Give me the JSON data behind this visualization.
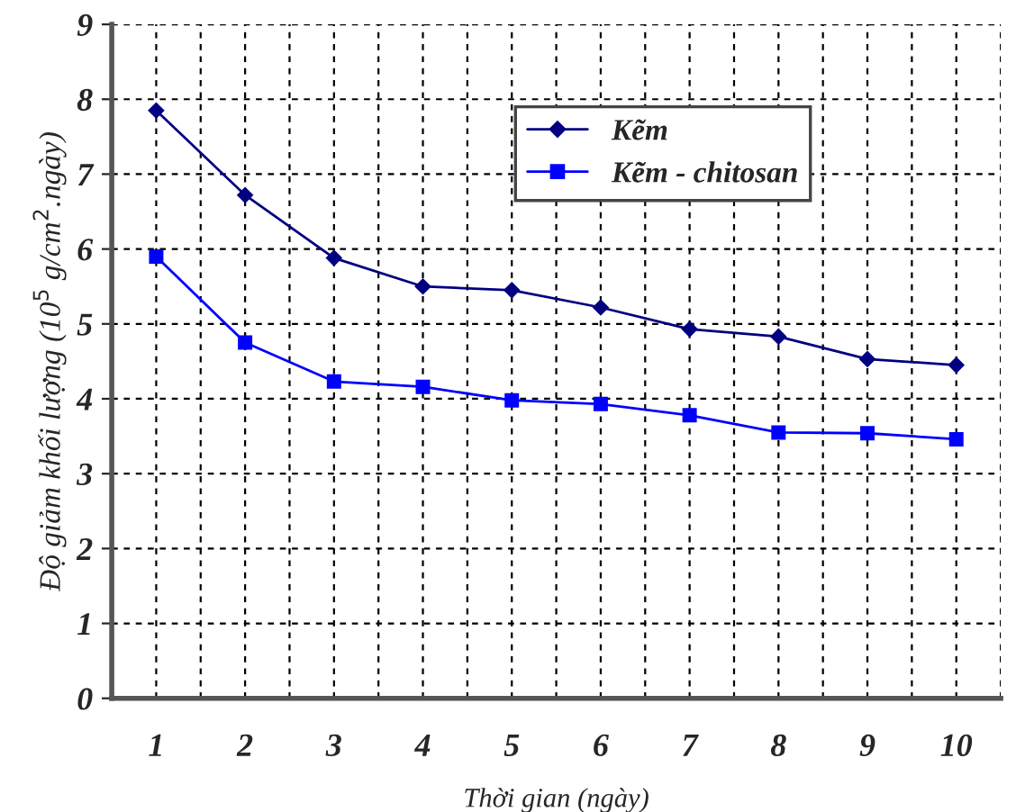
{
  "chart_data": {
    "type": "line",
    "xlabel": "Thời gian (ngày)",
    "ylabel": "Độ giảm khối lượng (10$^{5}$ g/cm$^{2}$.ngày)",
    "categories": [
      "1",
      "2",
      "3",
      "4",
      "5",
      "6",
      "7",
      "8",
      "9",
      "10"
    ],
    "series": [
      {
        "name": "Kẽm",
        "color": "#000080",
        "marker": "diamond",
        "values": [
          7.85,
          6.72,
          5.88,
          5.5,
          5.45,
          5.22,
          4.93,
          4.83,
          4.53,
          4.45
        ]
      },
      {
        "name": "Kẽm - chitosan",
        "color": "#0000ff",
        "marker": "square",
        "values": [
          5.9,
          4.75,
          4.23,
          4.16,
          3.98,
          3.93,
          3.78,
          3.55,
          3.54,
          3.46
        ]
      }
    ],
    "ylim": [
      0,
      9
    ],
    "yticks": [
      0,
      1,
      2,
      3,
      4,
      5,
      6,
      7,
      8,
      9
    ],
    "grid": true,
    "legend": "top",
    "line_style": "solid"
  }
}
